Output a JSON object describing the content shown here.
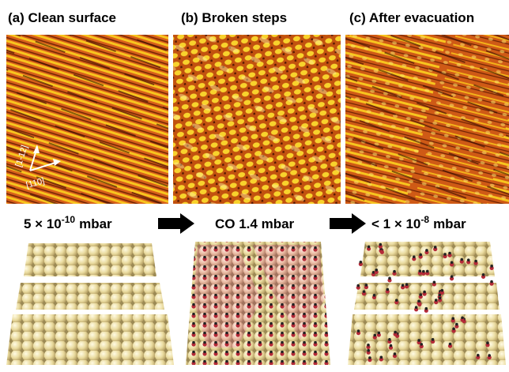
{
  "panels": [
    {
      "title": "(a) Clean surface",
      "pressure": {
        "base": "5 × 10",
        "exponent": "-10",
        "unit": "mbar"
      }
    },
    {
      "title": "(b) Broken steps",
      "pressure": {
        "base": "CO 1.4 mbar"
      }
    },
    {
      "title": "(c) After evacuation",
      "pressure": {
        "base": "< 1 × 10",
        "exponent": "-8",
        "unit": "mbar"
      }
    }
  ],
  "axes": {
    "vertical": "[1-12]",
    "horizontal": "[110]"
  }
}
